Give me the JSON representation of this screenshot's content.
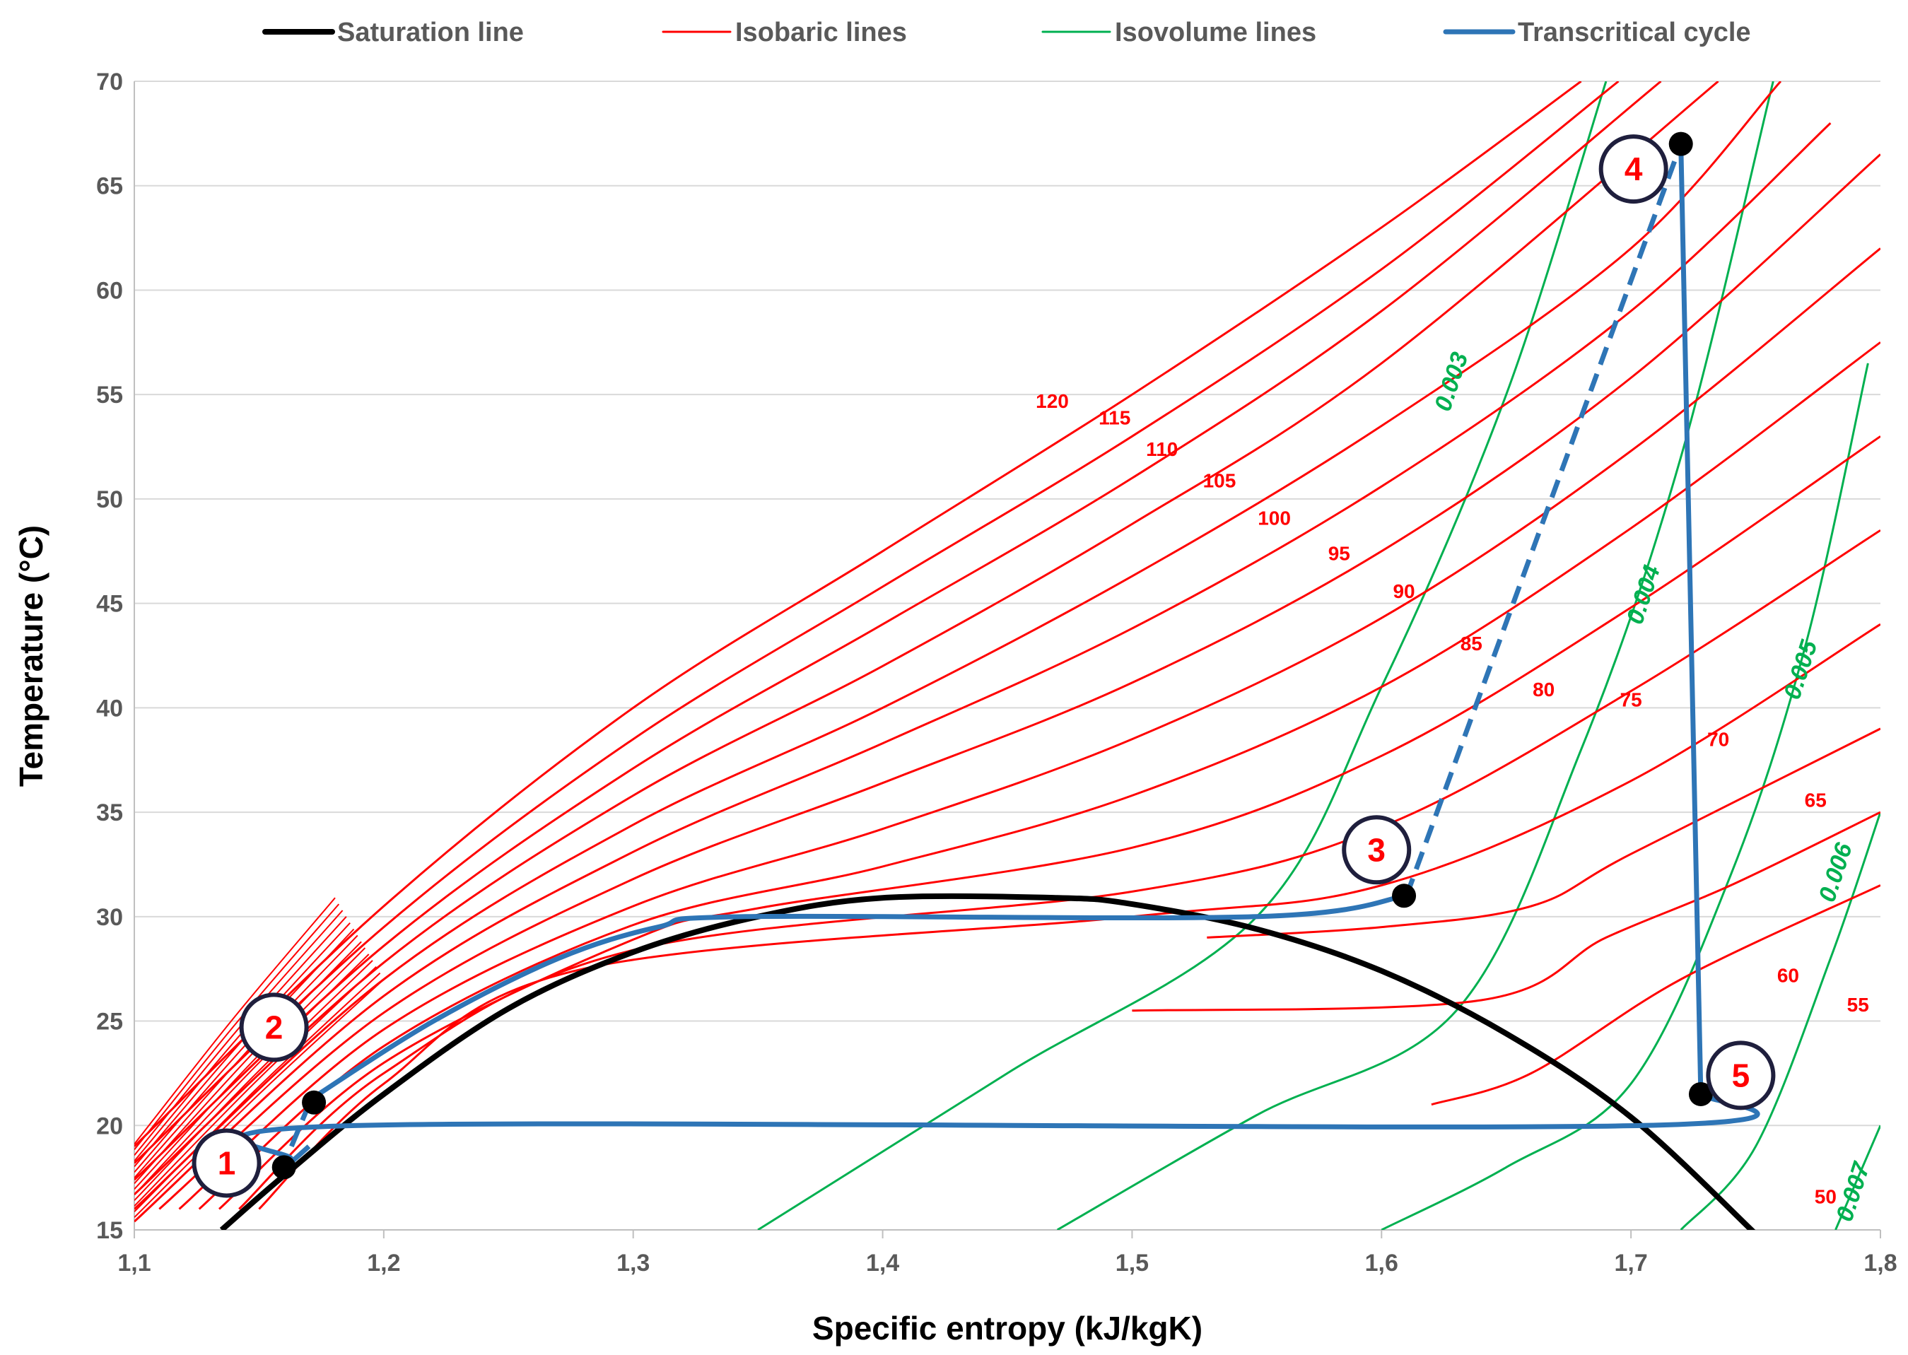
{
  "chart_data": {
    "type": "line",
    "xlabel": "Specific entropy (kJ/kgK)",
    "ylabel": "Temperature (°C)",
    "xlim": [
      1.1,
      1.8
    ],
    "ylim": [
      15,
      70
    ],
    "x_ticks": [
      1.1,
      1.2,
      1.3,
      1.4,
      1.5,
      1.6,
      1.7,
      1.8
    ],
    "x_tick_labels": [
      "1,1",
      "1,2",
      "1,3",
      "1,4",
      "1,5",
      "1,6",
      "1,7",
      "1,8"
    ],
    "y_ticks": [
      15,
      20,
      25,
      30,
      35,
      40,
      45,
      50,
      55,
      60,
      65,
      70
    ],
    "y_tick_labels": [
      "15",
      "20",
      "25",
      "30",
      "35",
      "40",
      "45",
      "50",
      "55",
      "60",
      "65",
      "70"
    ],
    "grid": "horizontal",
    "legend": {
      "placement": "top",
      "entries": [
        {
          "label": "Saturation line",
          "color": "#000000"
        },
        {
          "label": "Isobaric lines",
          "color": "#ff0000"
        },
        {
          "label": "Isovolume lines",
          "color": "#00b050"
        },
        {
          "label": "Transcritical cycle",
          "color": "#2e75b6"
        }
      ]
    },
    "colors": {
      "saturation": "#000000",
      "isobar": "#ff0000",
      "isovolume": "#00b050",
      "cycle": "#2e75b6",
      "point": "#000000",
      "circle": "#1f1f3d"
    },
    "saturation_line": {
      "x": [
        1.135,
        1.16,
        1.2,
        1.25,
        1.3,
        1.35,
        1.4,
        1.47,
        1.5,
        1.55,
        1.6,
        1.65,
        1.7,
        1.75
      ],
      "y": [
        15,
        17.6,
        21.5,
        25.6,
        28.3,
        30,
        30.9,
        30.9,
        30.6,
        29.4,
        27.4,
        24.4,
        20.4,
        14.8
      ]
    },
    "isobaric_lines": [
      {
        "label": "120",
        "label_x": 1.468,
        "label_y": 54.7,
        "x": [
          1.1,
          1.2,
          1.3,
          1.4,
          1.5,
          1.6,
          1.68
        ],
        "y": [
          19,
          30.5,
          40,
          47.5,
          55,
          63,
          70
        ]
      },
      {
        "label": "115",
        "label_x": 1.493,
        "label_y": 53.9,
        "x": [
          1.1,
          1.2,
          1.3,
          1.4,
          1.5,
          1.6,
          1.695
        ],
        "y": [
          18.2,
          29.5,
          38.5,
          45.8,
          53,
          61,
          70
        ]
      },
      {
        "label": "110",
        "label_x": 1.512,
        "label_y": 52.4,
        "x": [
          1.1,
          1.2,
          1.3,
          1.4,
          1.5,
          1.6,
          1.712
        ],
        "y": [
          17.4,
          28.6,
          37.1,
          44,
          51,
          59,
          70
        ]
      },
      {
        "label": "105",
        "label_x": 1.535,
        "label_y": 50.9,
        "x": [
          1.1,
          1.2,
          1.3,
          1.4,
          1.5,
          1.6,
          1.735
        ],
        "y": [
          16.7,
          27.8,
          35.8,
          42,
          48.8,
          56.5,
          70
        ]
      },
      {
        "label": "100",
        "label_x": 1.557,
        "label_y": 49.1,
        "x": [
          1.1,
          1.2,
          1.3,
          1.4,
          1.5,
          1.6,
          1.7,
          1.76
        ],
        "y": [
          16,
          27,
          34.4,
          40,
          46.3,
          53.5,
          62,
          70
        ]
      },
      {
        "label": "95",
        "label_x": 1.583,
        "label_y": 47.4,
        "x": [
          1.1,
          1.2,
          1.3,
          1.4,
          1.5,
          1.6,
          1.7,
          1.78
        ],
        "y": [
          15.4,
          26.2,
          33.1,
          38.3,
          43.8,
          50.6,
          59,
          68
        ]
      },
      {
        "label": "90",
        "label_x": 1.609,
        "label_y": 45.6,
        "x": [
          1.11,
          1.2,
          1.3,
          1.4,
          1.5,
          1.6,
          1.7,
          1.8
        ],
        "y": [
          16,
          25.4,
          31.8,
          36.4,
          41.2,
          47.5,
          55.8,
          66.5
        ]
      },
      {
        "label": "85",
        "label_x": 1.636,
        "label_y": 43.1,
        "x": [
          1.118,
          1.2,
          1.3,
          1.4,
          1.5,
          1.6,
          1.7,
          1.8
        ],
        "y": [
          16,
          24.6,
          30.5,
          34.2,
          38.5,
          44.3,
          52.3,
          62
        ]
      },
      {
        "label": "80",
        "label_x": 1.665,
        "label_y": 40.9,
        "x": [
          1.126,
          1.2,
          1.3,
          1.4,
          1.5,
          1.6,
          1.7,
          1.8
        ],
        "y": [
          16,
          23.8,
          29.6,
          32.4,
          35.8,
          41,
          48.6,
          57.5
        ]
      },
      {
        "label": "75",
        "label_x": 1.7,
        "label_y": 40.4,
        "x": [
          1.134,
          1.2,
          1.3,
          1.35,
          1.5,
          1.6,
          1.7,
          1.8
        ],
        "y": [
          16,
          23,
          28.9,
          30.4,
          33.3,
          37.7,
          44.8,
          53
        ]
      },
      {
        "label": "70",
        "label_x": 1.735,
        "label_y": 38.5,
        "x": [
          1.142,
          1.2,
          1.3,
          1.5,
          1.6,
          1.7,
          1.8
        ],
        "y": [
          16,
          22.5,
          28.4,
          31.2,
          34.3,
          40.8,
          48.5
        ]
      },
      {
        "label": "65",
        "label_x": 1.774,
        "label_y": 35.6,
        "x": [
          1.15,
          1.2,
          1.28,
          1.5,
          1.6,
          1.7,
          1.8
        ],
        "y": [
          16,
          22,
          27.5,
          30,
          31.5,
          36.5,
          44
        ]
      },
      {
        "label": "60",
        "label_x": 1.763,
        "label_y": 27.2,
        "x": [
          1.53,
          1.6,
          1.66,
          1.7,
          1.8
        ],
        "y": [
          29,
          29.5,
          30.5,
          33,
          39
        ]
      },
      {
        "label": "55",
        "label_x": 1.791,
        "label_y": 25.8,
        "x": [
          1.5,
          1.64,
          1.69,
          1.74,
          1.8
        ],
        "y": [
          25.5,
          26,
          29,
          31.5,
          35
        ]
      },
      {
        "label": "50",
        "label_x": 1.778,
        "label_y": 16.6,
        "x": [
          1.62,
          1.66,
          1.72,
          1.8
        ],
        "y": [
          21,
          22.5,
          27,
          31.5
        ]
      }
    ],
    "isovolume_lines": [
      {
        "label": "0.003",
        "label_x": 1.631,
        "label_y": 55.5,
        "x": [
          1.35,
          1.45,
          1.55,
          1.6,
          1.65,
          1.69
        ],
        "y": [
          15,
          22.5,
          30,
          41,
          55,
          70
        ]
      },
      {
        "label": "0.004",
        "label_x": 1.708,
        "label_y": 45.3,
        "x": [
          1.47,
          1.55,
          1.63,
          1.68,
          1.72,
          1.757
        ],
        "y": [
          15,
          20.5,
          25.5,
          38,
          52,
          70
        ]
      },
      {
        "label": "0.005",
        "label_x": 1.771,
        "label_y": 41.7,
        "x": [
          1.6,
          1.65,
          1.7,
          1.74,
          1.77,
          1.795
        ],
        "y": [
          15,
          18,
          22,
          32,
          43,
          56.5
        ]
      },
      {
        "label": "0.006",
        "label_x": 1.785,
        "label_y": 32,
        "x": [
          1.72,
          1.75,
          1.78,
          1.8
        ],
        "y": [
          15,
          19,
          28,
          35
        ]
      },
      {
        "label": "0.007",
        "label_x": 1.792,
        "label_y": 16.7,
        "x": [
          1.782,
          1.8
        ],
        "y": [
          15,
          20
        ]
      }
    ],
    "transcritical_cycle": {
      "segments": [
        {
          "style": "solid",
          "x": [
            1.1625,
            1.19,
            1.705,
            1.728
          ],
          "y": [
            18.4,
            20,
            20,
            21.5
          ]
        },
        {
          "style": "solid",
          "x": [
            1.1625,
            1.17
          ],
          "y": [
            18.2,
            19
          ]
        },
        {
          "style": "dashed",
          "x": [
            1.163,
            1.17
          ],
          "y": [
            19,
            21
          ]
        },
        {
          "style": "solid",
          "x": [
            1.17,
            1.22,
            1.27,
            1.31,
            1.345,
            1.55,
            1.61
          ],
          "y": [
            21.2,
            25,
            28,
            29.5,
            30,
            30,
            31
          ]
        },
        {
          "style": "dashed",
          "x": [
            1.61,
            1.72
          ],
          "y": [
            31,
            67
          ]
        },
        {
          "style": "solid",
          "x": [
            1.72,
            1.728
          ],
          "y": [
            67,
            21.5
          ]
        }
      ],
      "points": [
        {
          "label": "1",
          "x": 1.16,
          "y": 18
        },
        {
          "label": "2",
          "x": 1.172,
          "y": 21.1
        },
        {
          "label": "3",
          "x": 1.609,
          "y": 31
        },
        {
          "label": "4",
          "x": 1.72,
          "y": 67
        },
        {
          "label": "5",
          "x": 1.728,
          "y": 21.5
        }
      ],
      "label_circles": [
        {
          "label": "1",
          "x": 1.137,
          "y": 18.2
        },
        {
          "label": "2",
          "x": 1.156,
          "y": 24.7
        },
        {
          "label": "3",
          "x": 1.598,
          "y": 33.2
        },
        {
          "label": "4",
          "x": 1.701,
          "y": 65.8
        },
        {
          "label": "5",
          "x": 1.744,
          "y": 22.4
        }
      ]
    }
  }
}
